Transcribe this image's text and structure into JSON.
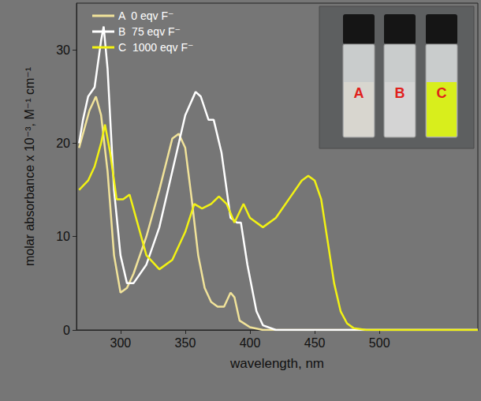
{
  "chart_data": {
    "type": "line",
    "x_label": "wavelength, nm",
    "y_label": "molar absorbance x 10⁻³, M⁻¹ cm⁻¹",
    "xlim": [
      266,
      576
    ],
    "xticks": [
      300,
      350,
      400,
      450,
      500
    ],
    "ylim": [
      0,
      35
    ],
    "yticks": [
      0,
      10,
      20,
      30
    ],
    "grid": false,
    "legend": "upper left",
    "annotations": [
      "A",
      "B",
      "C"
    ],
    "series": [
      {
        "name": "A  0 eqv F⁻",
        "color": "#f1e39a",
        "x": [
          268,
          272,
          276,
          281,
          285,
          290,
          295,
          300,
          305,
          310,
          320,
          330,
          340,
          345,
          350,
          355,
          360,
          365,
          370,
          375,
          380,
          385,
          388,
          392,
          400,
          410,
          576
        ],
        "values": [
          19.5,
          21.5,
          23.5,
          25,
          23,
          17,
          8,
          4,
          4.5,
          6,
          10,
          15,
          20.5,
          21,
          19.5,
          14,
          8,
          4.5,
          3,
          2.5,
          2.5,
          4,
          3.5,
          1,
          0.3,
          0,
          0
        ]
      },
      {
        "name": "B  75 eqv F⁻",
        "color": "#ffffff",
        "x": [
          268,
          271,
          275,
          280,
          285,
          287,
          290,
          295,
          300,
          305,
          310,
          320,
          330,
          340,
          350,
          358,
          362,
          368,
          372,
          378,
          385,
          390,
          393,
          398,
          405,
          410,
          420,
          576
        ],
        "values": [
          20,
          22.5,
          25,
          26,
          31,
          32.5,
          28,
          15,
          8,
          5,
          5,
          7,
          11,
          17,
          23,
          25.5,
          25,
          22.5,
          22.5,
          19,
          12,
          11.5,
          11.5,
          7,
          2,
          0.5,
          0,
          0
        ]
      },
      {
        "name": "C  1000 eqv F⁻",
        "color": "#f2f213",
        "x": [
          268,
          275,
          280,
          285,
          288,
          292,
          297,
          302,
          307,
          312,
          320,
          330,
          340,
          350,
          357,
          363,
          370,
          376,
          382,
          388,
          395,
          400,
          410,
          420,
          430,
          440,
          445,
          450,
          455,
          460,
          465,
          470,
          475,
          480,
          490,
          576
        ],
        "values": [
          15,
          16,
          17.5,
          20,
          22,
          19,
          14,
          14,
          14.5,
          12,
          8,
          6.5,
          7.5,
          10.5,
          13.5,
          13,
          13.5,
          14.3,
          13.5,
          11.5,
          13.5,
          12,
          11,
          12,
          14,
          16,
          16.5,
          16,
          14,
          9.5,
          5,
          2,
          0.7,
          0.2,
          0,
          0
        ]
      }
    ]
  }
}
